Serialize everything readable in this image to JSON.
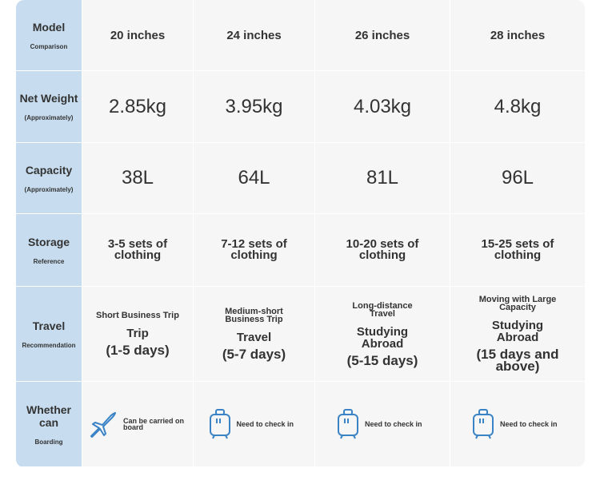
{
  "table": {
    "rows": [
      {
        "header": {
          "title": "Model",
          "subtitle": "Comparison"
        },
        "cells": [
          "20 inches",
          "24 inches",
          "26 inches",
          "28 inches"
        ]
      },
      {
        "header": {
          "title": "Net Weight",
          "subtitle": "(Approximately)"
        },
        "cells": [
          "2.85kg",
          "3.95kg",
          "4.03kg",
          "4.8kg"
        ]
      },
      {
        "header": {
          "title": "Capacity",
          "subtitle": "(Approximately)"
        },
        "cells": [
          "38L",
          "64L",
          "81L",
          "96L"
        ]
      },
      {
        "header": {
          "title": "Storage",
          "subtitle": "Reference"
        },
        "cells": [
          "3-5 sets of clothing",
          "7-12 sets of clothing",
          "10-20 sets of clothing",
          "15-25 sets of clothing"
        ]
      },
      {
        "header": {
          "title": "Travel",
          "subtitle": "Recommendation"
        },
        "cells": [
          {
            "note": "Short Business Trip",
            "main": "Trip",
            "days": "(1-5 days)"
          },
          {
            "note": "Medium-short Business Trip",
            "main": "Travel",
            "days": "(5-7 days)"
          },
          {
            "note": "Long-distance Travel",
            "main": "Studying Abroad",
            "days": "(5-15 days)"
          },
          {
            "note": "Moving with Large Capacity",
            "main": "Studying Abroad",
            "days": "(15 days and above)"
          }
        ]
      },
      {
        "header": {
          "title": "Whether can",
          "subtitle": "Boarding"
        },
        "cells": [
          "Can be carried on board",
          "Need to check in",
          "Need to check in",
          "Need to check in"
        ]
      }
    ]
  }
}
